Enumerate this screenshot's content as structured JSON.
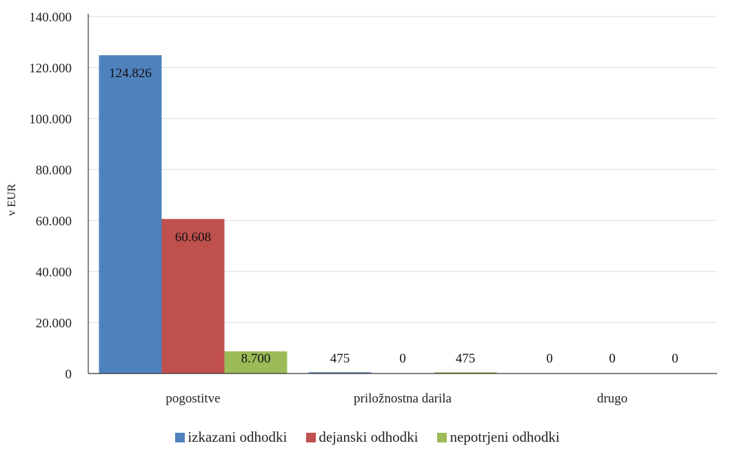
{
  "chart_data": {
    "type": "bar",
    "ylabel": "v EUR",
    "xlabel": "",
    "ylim": [
      0,
      140000
    ],
    "yticks": [
      0,
      20000,
      40000,
      60000,
      80000,
      100000,
      120000,
      140000
    ],
    "ytick_labels": [
      "0",
      "20.000",
      "40.000",
      "60.000",
      "80.000",
      "100.000",
      "120.000",
      "140.000"
    ],
    "grid": true,
    "legend_position": "bottom",
    "categories": [
      "pogostitve",
      "priložnostna darila",
      "drugo"
    ],
    "series": [
      {
        "name": "izkazani odhodki",
        "color": "#4F81BD",
        "values": [
          124826,
          475,
          0
        ],
        "labels": [
          "124.826",
          "475",
          "0"
        ]
      },
      {
        "name": "dejanski odhodki",
        "color": "#C0504D",
        "values": [
          60608,
          0,
          0
        ],
        "labels": [
          "60.608",
          "0",
          "0"
        ]
      },
      {
        "name": "nepotrjeni odhodki",
        "color": "#9BBB59",
        "values": [
          8700,
          475,
          0
        ],
        "labels": [
          "8.700",
          "475",
          "0"
        ]
      }
    ]
  }
}
